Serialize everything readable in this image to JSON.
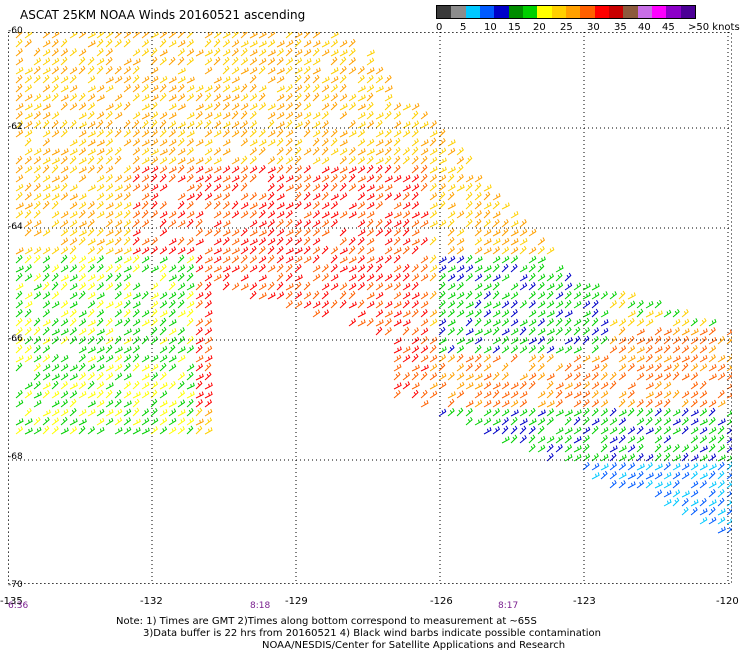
{
  "title": "ASCAT 25KM NOAA Winds 20160521 ascending",
  "legend": {
    "colors": [
      "#3a3a3a",
      "#8c8c8c",
      "#00c8ff",
      "#005bff",
      "#0000c8",
      "#008c00",
      "#00d000",
      "#ffff00",
      "#ffd000",
      "#ffa000",
      "#ff6000",
      "#ff0000",
      "#c80000",
      "#8c5a3c",
      "#c86ee6",
      "#ff00ff",
      "#8c00c8",
      "#4b0096"
    ],
    "labels": [
      "0",
      "5",
      "10",
      "15",
      "20",
      "25",
      "30",
      "35",
      "40",
      "45",
      ">50 knots"
    ]
  },
  "axes": {
    "lat_labels": [
      "-60",
      "-62",
      "-64",
      "-66",
      "-68",
      "-70"
    ],
    "lon_labels": [
      "-135",
      "-132",
      "-129",
      "-126",
      "-123",
      "-120"
    ]
  },
  "time_labels": [
    "6:36",
    "8:18",
    "8:17"
  ],
  "notes": [
    "Note: 1) Times are GMT 2)Times along bottom correspond to measurement at ~65S",
    "3)Data buffer is 22 hrs from 20160521 4) Black wind barbs indicate possible contamination",
    "NOAA/NESDIS/Center for Satellite Applications and Research"
  ]
}
